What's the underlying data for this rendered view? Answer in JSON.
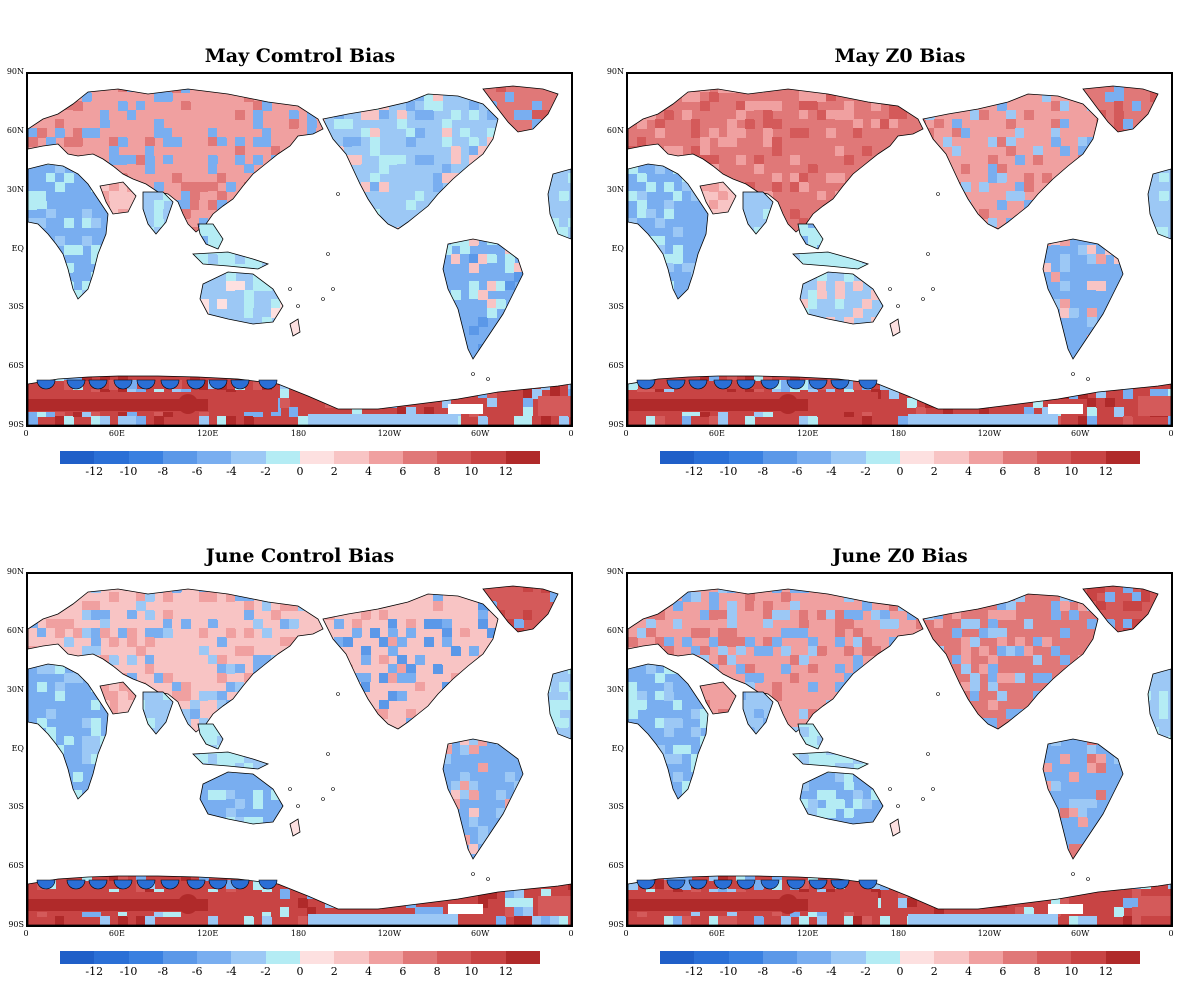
{
  "panels": [
    {
      "title": "May Comtrol Bias",
      "variant": "may-control"
    },
    {
      "title": "May Z0 Bias",
      "variant": "may-z0"
    },
    {
      "title": "June Control Bias",
      "variant": "june-control"
    },
    {
      "title": "June Z0 Bias",
      "variant": "june-z0"
    }
  ],
  "lat_labels": [
    "90N",
    "60N",
    "30N",
    "EQ",
    "30S",
    "60S",
    "90S"
  ],
  "lon_labels": [
    "0",
    "60E",
    "120E",
    "180",
    "120W",
    "60W",
    "0"
  ],
  "colorbar": {
    "ticks": [
      "-12",
      "-10",
      "-8",
      "-6",
      "-4",
      "-2",
      "0",
      "2",
      "4",
      "6",
      "8",
      "10",
      "12"
    ],
    "colors": [
      "#1f5fc8",
      "#2a6fd6",
      "#3a80e0",
      "#5b98e8",
      "#79aef0",
      "#9cc8f5",
      "#b4ecf4",
      "#fde0e0",
      "#f8c4c4",
      "#f0a0a0",
      "#e07878",
      "#d45a5a",
      "#c84444",
      "#b02a2a"
    ]
  }
}
